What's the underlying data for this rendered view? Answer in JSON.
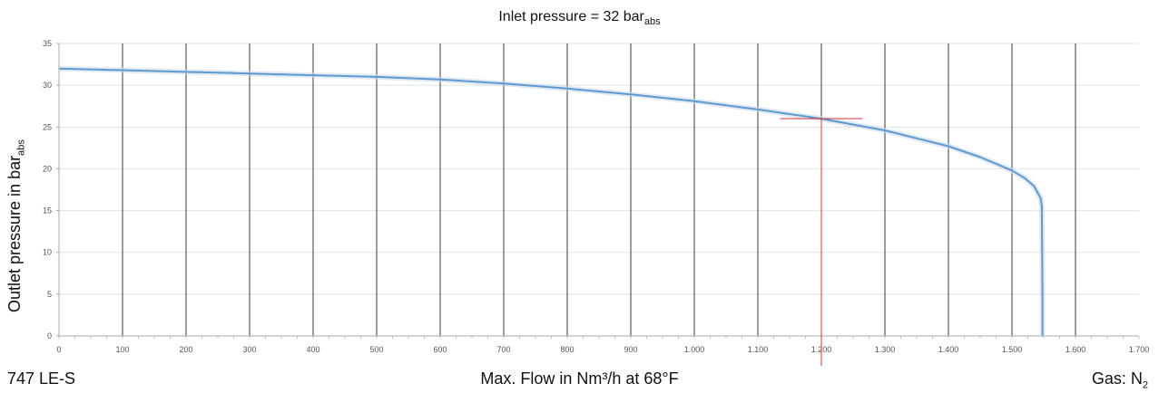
{
  "chart_data": {
    "type": "line",
    "title_main": "Inlet pressure = 32 bar",
    "title_sub": "abs",
    "ylabel_main": "Outlet pressure in bar",
    "ylabel_sub": "abs",
    "xlabel": "Max. Flow in Nm³/h at 68°F",
    "footer_left": "747 LE-S",
    "footer_right_main": "Gas: N",
    "footer_right_sub": "2",
    "xlim": [
      0,
      1700
    ],
    "ylim": [
      0,
      35
    ],
    "x_ticks": [
      0,
      100,
      200,
      300,
      400,
      500,
      600,
      700,
      800,
      900,
      1000,
      1100,
      1200,
      1300,
      1400,
      1500,
      1600,
      1700
    ],
    "x_tick_labels": [
      "0",
      "100",
      "200",
      "300",
      "400",
      "500",
      "600",
      "700",
      "800",
      "900",
      "1.000",
      "1.100",
      "1.200",
      "1.300",
      "1.400",
      "1.500",
      "1.600",
      "1.700"
    ],
    "y_ticks": [
      0,
      5,
      10,
      15,
      20,
      25,
      30,
      35
    ],
    "y_tick_labels": [
      "0",
      "5",
      "10",
      "15",
      "20",
      "25",
      "30",
      "35"
    ],
    "grid": "vertical dark lines at each x tick, light horizontal lines at each y tick",
    "series": [
      {
        "color": "#5b9bd5",
        "x": [
          0,
          100,
          200,
          300,
          400,
          500,
          600,
          700,
          800,
          900,
          1000,
          1100,
          1200,
          1300,
          1400,
          1450,
          1500,
          1520,
          1535,
          1545,
          1547,
          1548,
          1548
        ],
        "y": [
          32,
          31.8,
          31.6,
          31.4,
          31.2,
          31,
          30.7,
          30.2,
          29.6,
          28.9,
          28.1,
          27.1,
          26,
          24.6,
          22.7,
          21.4,
          19.8,
          18.9,
          17.9,
          16.5,
          15.5,
          5,
          0
        ]
      }
    ],
    "marker": {
      "color": "#e03030",
      "x": 1200,
      "y": 26,
      "hline_x": [
        1135,
        1265
      ]
    }
  }
}
